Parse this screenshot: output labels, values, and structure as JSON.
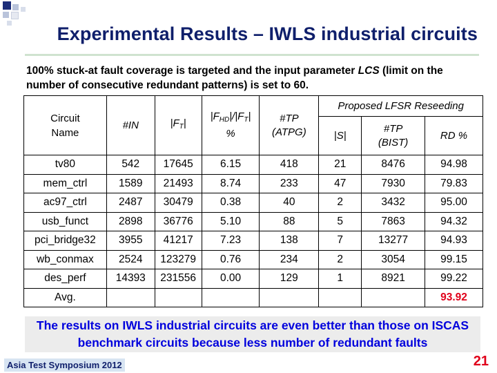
{
  "slide": {
    "title": "Experimental Results – IWLS industrial circuits",
    "intro_part1": "100% stuck-at fault coverage is targeted and the input parameter ",
    "intro_lcs": "LCS",
    "intro_part2": " (limit on the number of consecutive redundant patterns) is set to 60.",
    "note": "The results on IWLS industrial circuits are even better than those on ISCAS benchmark circuits because less number of redundant faults",
    "footer": "Asia Test Symposium 2012",
    "page_number": "21",
    "accent_colors": {
      "title": "#0f1f6b",
      "note_text": "#0000dd",
      "highlight": "#e0001a",
      "note_bg": "#ececec"
    }
  },
  "table": {
    "headers": {
      "circuit": "Circuit Name",
      "in": "#IN",
      "ft": "|F",
      "ft_sub": "T",
      "ft_close": "|",
      "fhd_a": "|F",
      "fhd_sub": "HD",
      "fhd_b": "|/|F",
      "fhd_sub2": "T",
      "fhd_c": "|",
      "fhd_pct": "%",
      "tp_atpg_1": "#TP",
      "tp_atpg_2": "(ATPG)",
      "group": "Proposed LFSR Reseeding",
      "s": "|S|",
      "tp_bist_1": "#TP",
      "tp_bist_2": "(BIST)",
      "rd": "RD %"
    },
    "rows": [
      {
        "name": "tv80",
        "in": "542",
        "ft": "17645",
        "fhd": "6.15",
        "tp_atpg": "418",
        "s": "21",
        "tp_bist": "8476",
        "rd": "94.98"
      },
      {
        "name": "mem_ctrl",
        "in": "1589",
        "ft": "21493",
        "fhd": "8.74",
        "tp_atpg": "233",
        "s": "47",
        "tp_bist": "7930",
        "rd": "79.83"
      },
      {
        "name": "ac97_ctrl",
        "in": "2487",
        "ft": "30479",
        "fhd": "0.38",
        "tp_atpg": "40",
        "s": "2",
        "tp_bist": "3432",
        "rd": "95.00"
      },
      {
        "name": "usb_funct",
        "in": "2898",
        "ft": "36776",
        "fhd": "5.10",
        "tp_atpg": "88",
        "s": "5",
        "tp_bist": "7863",
        "rd": "94.32"
      },
      {
        "name": "pci_bridge32",
        "in": "3955",
        "ft": "41217",
        "fhd": "7.23",
        "tp_atpg": "138",
        "s": "7",
        "tp_bist": "13277",
        "rd": "94.93"
      },
      {
        "name": "wb_conmax",
        "in": "2524",
        "ft": "123279",
        "fhd": "0.76",
        "tp_atpg": "234",
        "s": "2",
        "tp_bist": "3054",
        "rd": "99.15"
      },
      {
        "name": "des_perf",
        "in": "14393",
        "ft": "231556",
        "fhd": "0.00",
        "tp_atpg": "129",
        "s": "1",
        "tp_bist": "8921",
        "rd": "99.22"
      }
    ],
    "avg": {
      "label": "Avg.",
      "rd": "93.92"
    }
  }
}
